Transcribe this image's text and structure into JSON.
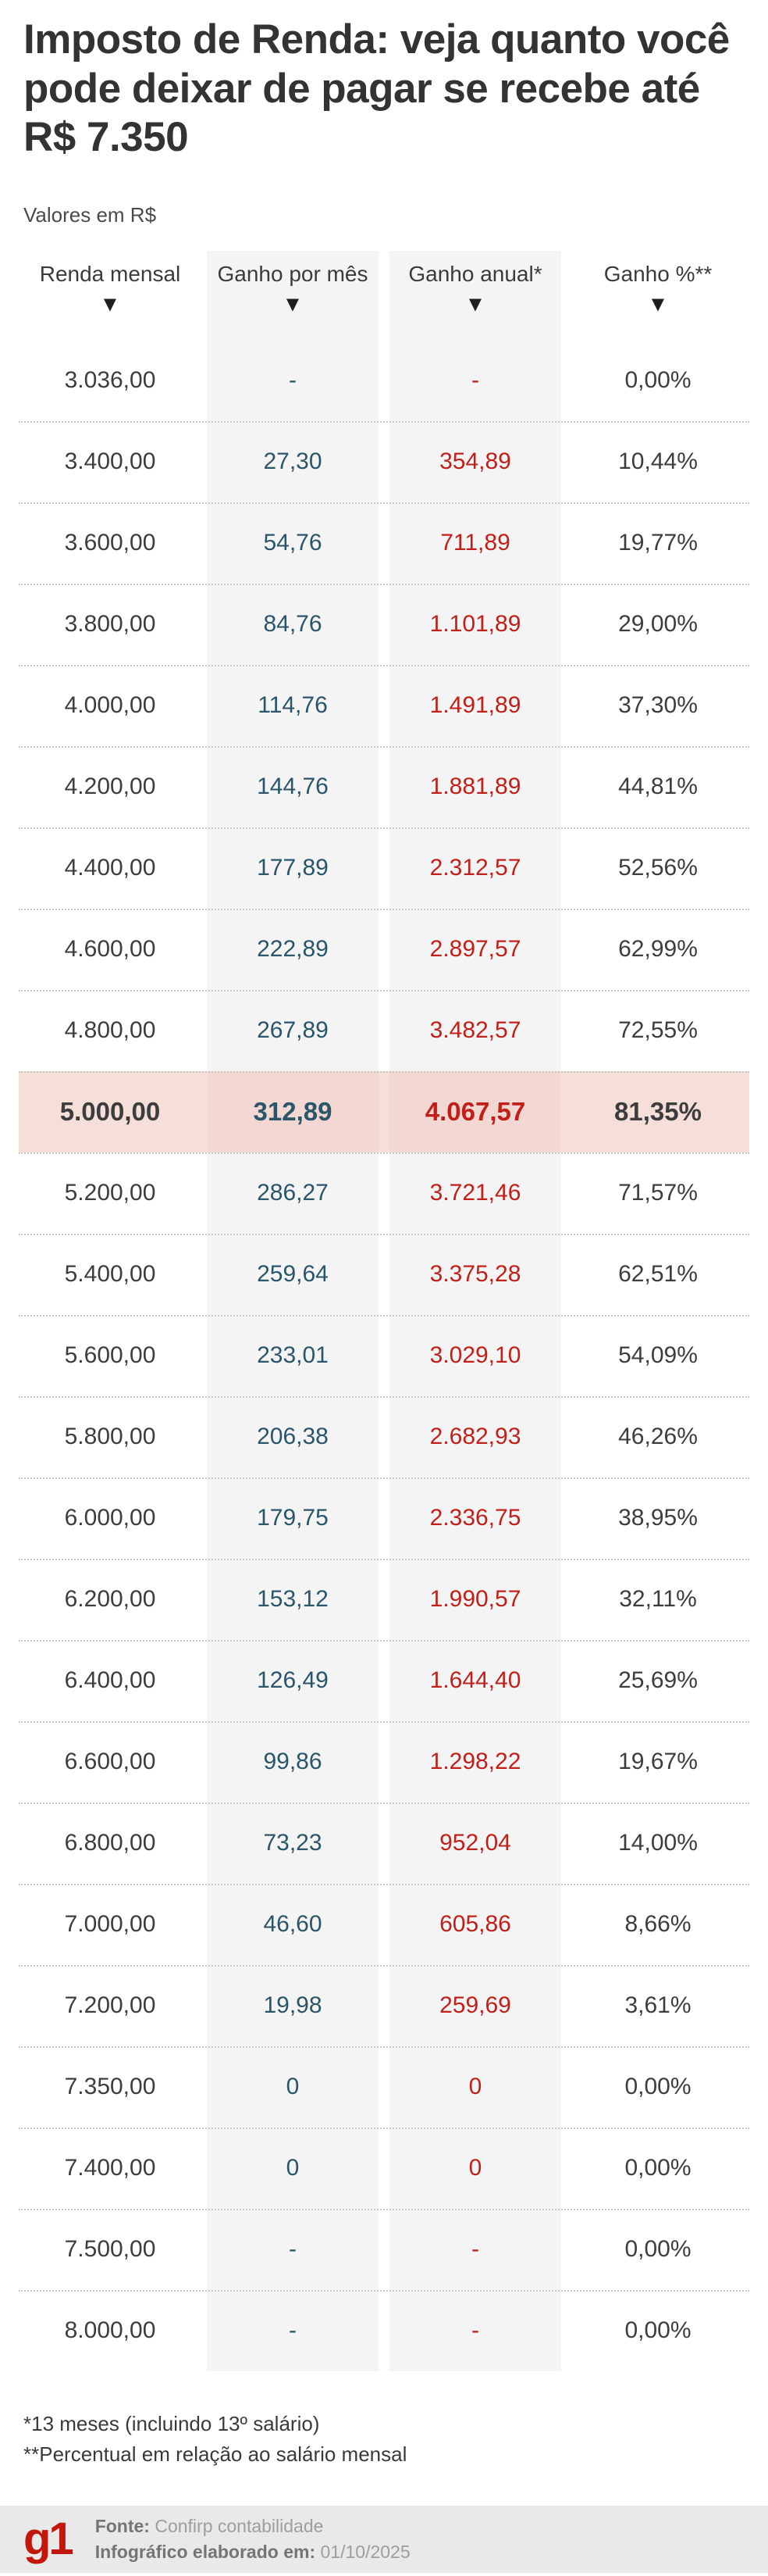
{
  "title": "Imposto de Renda: veja quanto você pode deixar de pagar se recebe até R$ 7.350",
  "subtitle": "Valores em R$",
  "table_meta": {
    "sort_icon": "▼",
    "highlighted_row_index": 9
  },
  "chart_data": {
    "type": "table",
    "title": "Imposto de Renda: veja quanto você pode deixar de pagar se recebe até R$ 7.350",
    "unit_note": "Valores em R$",
    "columns": [
      "Renda mensal",
      "Ganho por mês",
      "Ganho anual*",
      "Ganho %**"
    ],
    "rows": [
      [
        "3.036,00",
        "-",
        "-",
        "0,00%"
      ],
      [
        "3.400,00",
        "27,30",
        "354,89",
        "10,44%"
      ],
      [
        "3.600,00",
        "54,76",
        "711,89",
        "19,77%"
      ],
      [
        "3.800,00",
        "84,76",
        "1.101,89",
        "29,00%"
      ],
      [
        "4.000,00",
        "114,76",
        "1.491,89",
        "37,30%"
      ],
      [
        "4.200,00",
        "144,76",
        "1.881,89",
        "44,81%"
      ],
      [
        "4.400,00",
        "177,89",
        "2.312,57",
        "52,56%"
      ],
      [
        "4.600,00",
        "222,89",
        "2.897,57",
        "62,99%"
      ],
      [
        "4.800,00",
        "267,89",
        "3.482,57",
        "72,55%"
      ],
      [
        "5.000,00",
        "312,89",
        "4.067,57",
        "81,35%"
      ],
      [
        "5.200,00",
        "286,27",
        "3.721,46",
        "71,57%"
      ],
      [
        "5.400,00",
        "259,64",
        "3.375,28",
        "62,51%"
      ],
      [
        "5.600,00",
        "233,01",
        "3.029,10",
        "54,09%"
      ],
      [
        "5.800,00",
        "206,38",
        "2.682,93",
        "46,26%"
      ],
      [
        "6.000,00",
        "179,75",
        "2.336,75",
        "38,95%"
      ],
      [
        "6.200,00",
        "153,12",
        "1.990,57",
        "32,11%"
      ],
      [
        "6.400,00",
        "126,49",
        "1.644,40",
        "25,69%"
      ],
      [
        "6.600,00",
        "99,86",
        "1.298,22",
        "19,67%"
      ],
      [
        "6.800,00",
        "73,23",
        "952,04",
        "14,00%"
      ],
      [
        "7.000,00",
        "46,60",
        "605,86",
        "8,66%"
      ],
      [
        "7.200,00",
        "19,98",
        "259,69",
        "3,61%"
      ],
      [
        "7.350,00",
        "0",
        "0",
        "0,00%"
      ],
      [
        "7.400,00",
        "0",
        "0",
        "0,00%"
      ],
      [
        "7.500,00",
        "-",
        "-",
        "0,00%"
      ],
      [
        "8.000,00",
        "-",
        "-",
        "0,00%"
      ]
    ],
    "highlighted_row": [
      "5.000,00",
      "312,89",
      "4.067,57",
      "81,35%"
    ]
  },
  "footnotes": [
    "*13 meses (incluindo 13º salário)",
    "**Percentual em relação ao salário mensal"
  ],
  "footer": {
    "logo": "g1",
    "source_label": "Fonte:",
    "source_value": "Confirp contabilidade",
    "date_label": "Infográfico elaborado em:",
    "date_value": "01/10/2025"
  },
  "colors": {
    "title_text": "#333333",
    "body_text": "#3d3d3d",
    "ganho_mes_text": "#2b5568",
    "ganho_anual_text": "#c1201a",
    "shaded_column_bg": "#f4f4f4",
    "highlight_row_bg": "#f6ded9",
    "highlight_row_shaded_bg": "#f3d7d3",
    "separator_dotted": "#c9c9c9",
    "footer_bg": "#e9e9e9",
    "g1_logo_red": "#c4170c",
    "footer_label_text": "#757575",
    "footer_value_text": "#9e9e9e"
  }
}
